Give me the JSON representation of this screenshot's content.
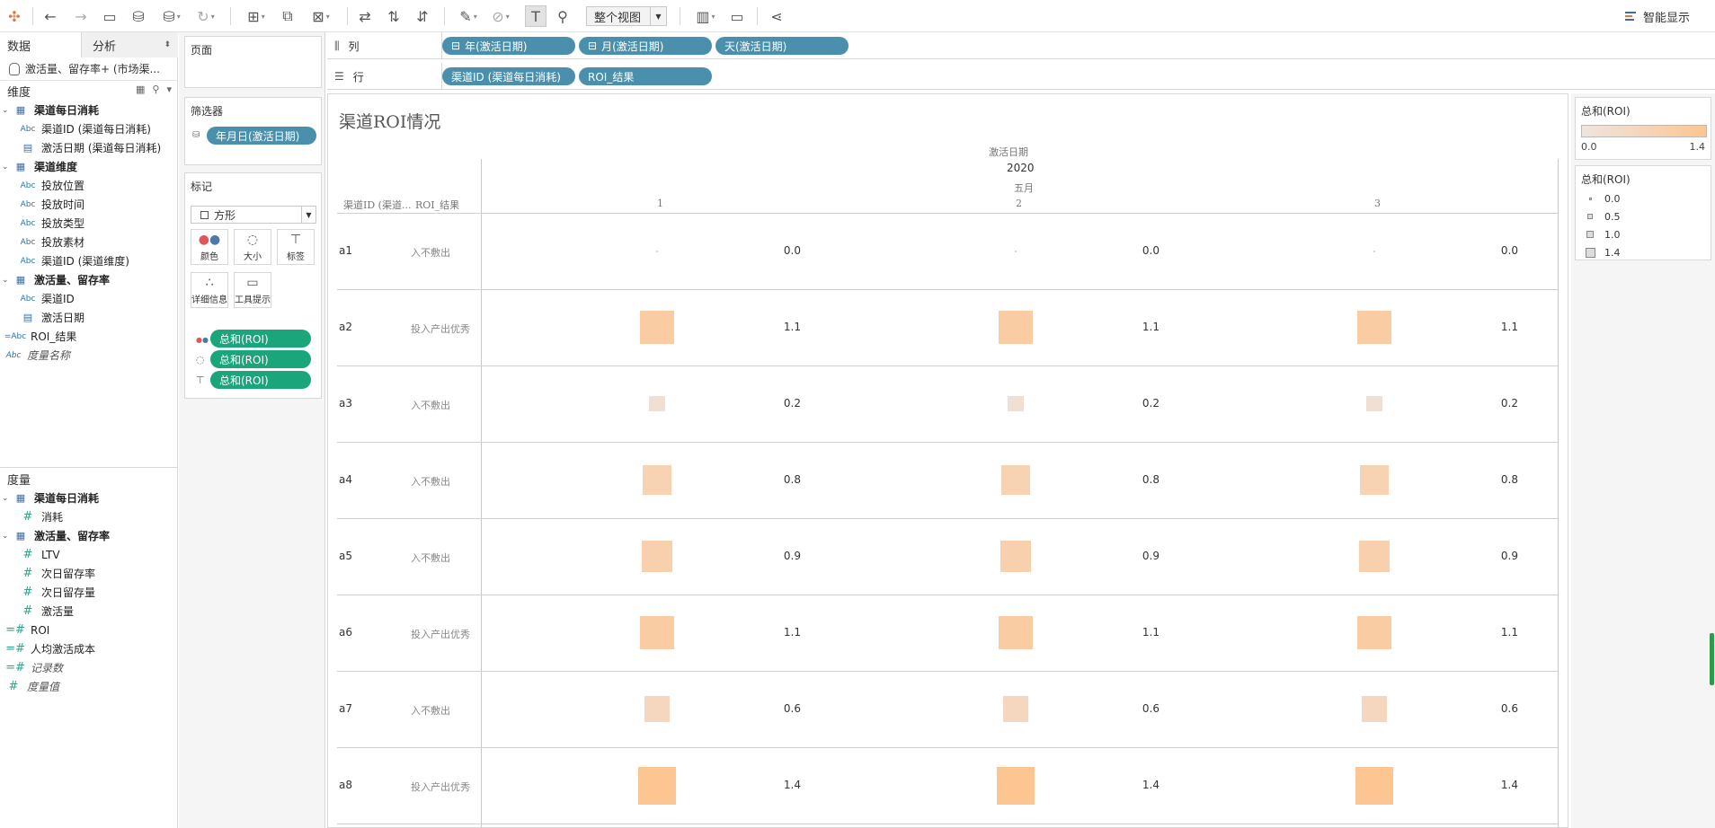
{
  "toolbar": {
    "view_mode": "整个视图",
    "smart_show": "智能显示"
  },
  "left_pane": {
    "tab_data": "数据",
    "tab_analysis": "分析",
    "datasource": "激活量、留存率+ (市场渠...",
    "dimensions_header": "维度",
    "dimensions": [
      {
        "kind": "group",
        "label": "渠道每日消耗"
      },
      {
        "kind": "abc",
        "label": "渠道ID (渠道每日消耗)"
      },
      {
        "kind": "date",
        "label": "激活日期 (渠道每日消耗)"
      },
      {
        "kind": "group",
        "label": "渠道维度"
      },
      {
        "kind": "abc",
        "label": "投放位置"
      },
      {
        "kind": "abc",
        "label": "投放时间"
      },
      {
        "kind": "abc",
        "label": "投放类型"
      },
      {
        "kind": "abc",
        "label": "投放素材"
      },
      {
        "kind": "abc",
        "label": "渠道ID (渠道维度)"
      },
      {
        "kind": "group",
        "label": "激活量、留存率"
      },
      {
        "kind": "abc",
        "label": "渠道ID"
      },
      {
        "kind": "date",
        "label": "激活日期"
      },
      {
        "kind": "calc-abc",
        "label": "ROI_结果"
      },
      {
        "kind": "abc-italic",
        "label": "度量名称"
      }
    ],
    "measures_header": "度量",
    "measures": [
      {
        "kind": "group",
        "label": "渠道每日消耗"
      },
      {
        "kind": "num",
        "label": "消耗"
      },
      {
        "kind": "group",
        "label": "激活量、留存率"
      },
      {
        "kind": "num",
        "label": "LTV"
      },
      {
        "kind": "num",
        "label": "次日留存率"
      },
      {
        "kind": "num",
        "label": "次日留存量"
      },
      {
        "kind": "num",
        "label": "激活量"
      },
      {
        "kind": "calc-num",
        "label": "ROI"
      },
      {
        "kind": "calc-num",
        "label": "人均激活成本"
      },
      {
        "kind": "calc-num-italic",
        "label": "记录数"
      },
      {
        "kind": "num-italic",
        "label": "度量值"
      }
    ]
  },
  "shelves": {
    "pages_title": "页面",
    "filters_title": "筛选器",
    "filter_pill": "年月日(激活日期)",
    "marks_title": "标记",
    "mark_type": "方形",
    "mark_buttons": [
      "颜色",
      "大小",
      "标签",
      "详细信息",
      "工具提示"
    ],
    "encodings": [
      "总和(ROI)",
      "总和(ROI)",
      "总和(ROI)"
    ],
    "columns_label": "列",
    "columns": [
      "年(激活日期)",
      "月(激活日期)",
      "天(激活日期)"
    ],
    "rows_label": "行",
    "rows": [
      "渠道ID (渠道每日消耗)",
      "ROI_结果"
    ]
  },
  "viz": {
    "title": "渠道ROI情况",
    "col_header_field": "激活日期",
    "year": "2020",
    "month": "五月",
    "row_header_1": "渠道ID (渠道...",
    "row_header_2": "ROI_结果",
    "days": [
      "1",
      "2",
      "3"
    ]
  },
  "chart_data": {
    "type": "heatmap",
    "title": "渠道ROI情况",
    "x_levels": {
      "year": "2020",
      "month": "五月",
      "days": [
        "1",
        "2",
        "3"
      ]
    },
    "rows": [
      {
        "channel": "a1",
        "result": "入不敷出",
        "values": [
          0.0,
          0.0,
          0.0
        ]
      },
      {
        "channel": "a2",
        "result": "投入产出优秀",
        "values": [
          1.1,
          1.1,
          1.1
        ]
      },
      {
        "channel": "a3",
        "result": "入不敷出",
        "values": [
          0.2,
          0.2,
          0.2
        ]
      },
      {
        "channel": "a4",
        "result": "入不敷出",
        "values": [
          0.8,
          0.8,
          0.8
        ]
      },
      {
        "channel": "a5",
        "result": "入不敷出",
        "values": [
          0.9,
          0.9,
          0.9
        ]
      },
      {
        "channel": "a6",
        "result": "投入产出优秀",
        "values": [
          1.1,
          1.1,
          1.1
        ]
      },
      {
        "channel": "a7",
        "result": "入不敷出",
        "values": [
          0.6,
          0.6,
          0.6
        ]
      },
      {
        "channel": "a8",
        "result": "投入产出优秀",
        "values": [
          1.4,
          1.4,
          1.4
        ]
      }
    ],
    "color_range": [
      0.0,
      1.4
    ],
    "color_low": "#eee4df",
    "color_high": "#fdc592"
  },
  "legends": {
    "color_title": "总和(ROI)",
    "color_min": "0.0",
    "color_max": "1.4",
    "size_title": "总和(ROI)",
    "size_items": [
      {
        "label": "0.0",
        "value": 0.0
      },
      {
        "label": "0.5",
        "value": 0.5
      },
      {
        "label": "1.0",
        "value": 1.0
      },
      {
        "label": "1.4",
        "value": 1.4
      }
    ]
  }
}
